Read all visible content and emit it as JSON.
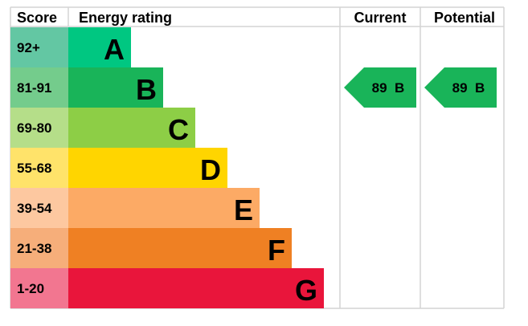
{
  "chart_data": {
    "type": "bar",
    "headers": {
      "score": "Score",
      "rating": "Energy rating",
      "current": "Current",
      "potential": "Potential"
    },
    "bands": [
      {
        "score": "92+",
        "letter": "A",
        "color": "#00c781",
        "score_color": "#63c7a3"
      },
      {
        "score": "81-91",
        "letter": "B",
        "color": "#19b459",
        "score_color": "#74cc8c"
      },
      {
        "score": "69-80",
        "letter": "C",
        "color": "#8dce46",
        "score_color": "#b5de89"
      },
      {
        "score": "55-68",
        "letter": "D",
        "color": "#ffd500",
        "score_color": "#ffe36a"
      },
      {
        "score": "39-54",
        "letter": "E",
        "color": "#fcaa65",
        "score_color": "#fdc8a0"
      },
      {
        "score": "21-38",
        "letter": "F",
        "color": "#ef8023",
        "score_color": "#f6ae7a"
      },
      {
        "score": "1-20",
        "letter": "G",
        "color": "#e9153b",
        "score_color": "#f27690"
      }
    ],
    "current": {
      "value": 89,
      "letter": "B",
      "label": "89  B",
      "color": "#19b459"
    },
    "potential": {
      "value": 89,
      "letter": "B",
      "label": "89  B",
      "color": "#19b459"
    }
  }
}
